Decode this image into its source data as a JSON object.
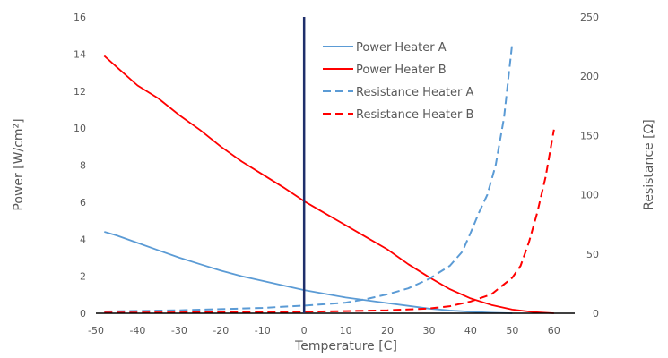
{
  "chart_data": {
    "type": "line",
    "title": "",
    "xlabel": "Temperature [C]",
    "ylabel": "Power [W/cm²]",
    "y2label": "Resistance [Ω]",
    "xlim": [
      -50,
      65
    ],
    "ylim": [
      0,
      16
    ],
    "y2lim": [
      0,
      250
    ],
    "xticks": [
      -50,
      -40,
      -30,
      -20,
      -10,
      0,
      10,
      20,
      30,
      40,
      50,
      60
    ],
    "yticks": [
      0,
      2,
      4,
      6,
      8,
      10,
      12,
      14,
      16
    ],
    "y2ticks": [
      0,
      50,
      100,
      150,
      200,
      250
    ],
    "grid": false,
    "legend_position": "top-right-inside",
    "reference_line": {
      "x": 0,
      "color": "#1F2F6B"
    },
    "series": [
      {
        "name": "Power Heater A",
        "axis": "left",
        "style": "solid",
        "color": "#5B9BD5",
        "x": [
          -48,
          -45,
          -40,
          -35,
          -30,
          -25,
          -20,
          -15,
          -10,
          -5,
          0,
          5,
          10,
          15,
          20,
          25,
          30,
          35,
          40,
          45,
          50
        ],
        "y": [
          4.4,
          4.2,
          3.8,
          3.4,
          3.0,
          2.65,
          2.3,
          2.0,
          1.75,
          1.5,
          1.25,
          1.05,
          0.85,
          0.7,
          0.55,
          0.4,
          0.25,
          0.15,
          0.08,
          0.03,
          0.0
        ]
      },
      {
        "name": "Power Heater B",
        "axis": "left",
        "style": "solid",
        "color": "#FF0000",
        "x": [
          -48,
          -45,
          -40,
          -35,
          -30,
          -25,
          -20,
          -15,
          -10,
          -5,
          0,
          5,
          10,
          15,
          20,
          25,
          30,
          35,
          40,
          45,
          50,
          55,
          60
        ],
        "y": [
          13.9,
          13.3,
          12.3,
          11.6,
          10.7,
          9.9,
          9.0,
          8.2,
          7.5,
          6.8,
          6.05,
          5.4,
          4.75,
          4.1,
          3.45,
          2.65,
          1.95,
          1.3,
          0.8,
          0.45,
          0.2,
          0.07,
          0.0
        ]
      },
      {
        "name": "Resistance Heater A",
        "axis": "right",
        "style": "dashed",
        "color": "#5B9BD5",
        "x": [
          -48,
          -40,
          -30,
          -20,
          -10,
          0,
          10,
          15,
          20,
          25,
          30,
          35,
          38,
          40,
          42,
          44,
          46,
          48,
          50
        ],
        "y": [
          1.5,
          2,
          2.5,
          3.5,
          4.5,
          6.5,
          9,
          12,
          16,
          21,
          29,
          40,
          52,
          68,
          85,
          100,
          125,
          165,
          228
        ]
      },
      {
        "name": "Resistance Heater B",
        "axis": "right",
        "style": "dashed",
        "color": "#FF0000",
        "x": [
          -48,
          -40,
          -30,
          -20,
          -10,
          0,
          10,
          20,
          30,
          35,
          40,
          45,
          50,
          52,
          54,
          56,
          58,
          60
        ],
        "y": [
          0.5,
          0.6,
          0.7,
          0.8,
          1.0,
          1.3,
          1.8,
          2.5,
          4.0,
          6.0,
          10,
          16,
          30,
          40,
          60,
          85,
          115,
          155
        ]
      }
    ]
  }
}
